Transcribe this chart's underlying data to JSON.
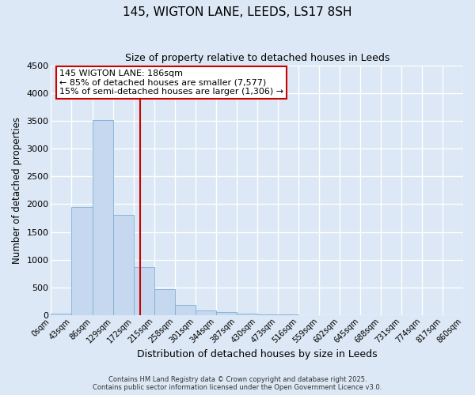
{
  "title": "145, WIGTON LANE, LEEDS, LS17 8SH",
  "subtitle": "Size of property relative to detached houses in Leeds",
  "xlabel": "Distribution of detached houses by size in Leeds",
  "ylabel": "Number of detached properties",
  "bin_labels": [
    "0sqm",
    "43sqm",
    "86sqm",
    "129sqm",
    "172sqm",
    "215sqm",
    "258sqm",
    "301sqm",
    "344sqm",
    "387sqm",
    "430sqm",
    "473sqm",
    "516sqm",
    "559sqm",
    "602sqm",
    "645sqm",
    "688sqm",
    "731sqm",
    "774sqm",
    "817sqm",
    "860sqm"
  ],
  "bar_values": [
    30,
    1950,
    3520,
    1800,
    860,
    460,
    175,
    85,
    50,
    30,
    15,
    5,
    0,
    0,
    0,
    0,
    0,
    0,
    0,
    0
  ],
  "bar_color": "#c5d8ef",
  "bar_edge_color": "#7eadd4",
  "vline_x": 4.33,
  "vline_color": "#cc0000",
  "annotation_title": "145 WIGTON LANE: 186sqm",
  "annotation_line1": "← 85% of detached houses are smaller (7,577)",
  "annotation_line2": "15% of semi-detached houses are larger (1,306) →",
  "annotation_box_color": "#ffffff",
  "annotation_box_edge": "#cc0000",
  "ylim": [
    0,
    4500
  ],
  "yticks": [
    0,
    500,
    1000,
    1500,
    2000,
    2500,
    3000,
    3500,
    4000,
    4500
  ],
  "background_color": "#dce8f5",
  "grid_color": "#ffffff",
  "footer1": "Contains HM Land Registry data © Crown copyright and database right 2025.",
  "footer2": "Contains public sector information licensed under the Open Government Licence v3.0."
}
